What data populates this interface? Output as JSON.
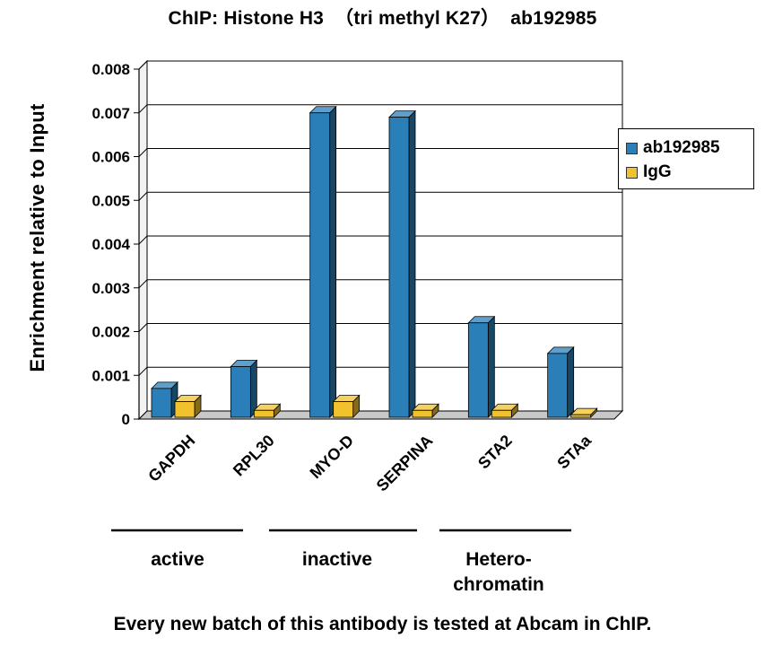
{
  "chart_data": {
    "type": "bar",
    "title": "ChIP: Histone H3  （tri methyl K27）  ab192985",
    "ylabel": "Enrichment relative to Input",
    "xlabel": "",
    "categories": [
      "GAPDH",
      "RPL30",
      "MYO-D",
      "SERPINA",
      "STA2",
      "STAa"
    ],
    "series": [
      {
        "name": "ab192985",
        "color": "#2b7fb8",
        "values": [
          0.0007,
          0.0012,
          0.007,
          0.0069,
          0.0022,
          0.0015
        ]
      },
      {
        "name": "IgG",
        "color": "#f2c12e",
        "values": [
          0.0004,
          0.0002,
          0.0004,
          0.0002,
          0.0002,
          0.0001
        ]
      }
    ],
    "ylim": [
      0,
      0.008
    ],
    "yticks": [
      "0",
      "0.001",
      "0.002",
      "0.003",
      "0.004",
      "0.005",
      "0.006",
      "0.007",
      "0.008"
    ],
    "grid": true,
    "legend_position": "right",
    "groups": [
      {
        "label": "active",
        "categories": [
          "GAPDH",
          "RPL30"
        ]
      },
      {
        "label": "inactive",
        "categories": [
          "MYO-D",
          "SERPINA"
        ]
      },
      {
        "label": "Hetero-\nchromatin",
        "categories": [
          "STA2",
          "STAa"
        ]
      }
    ]
  },
  "caption": "Every new batch of this antibody is tested at Abcam in ChIP."
}
